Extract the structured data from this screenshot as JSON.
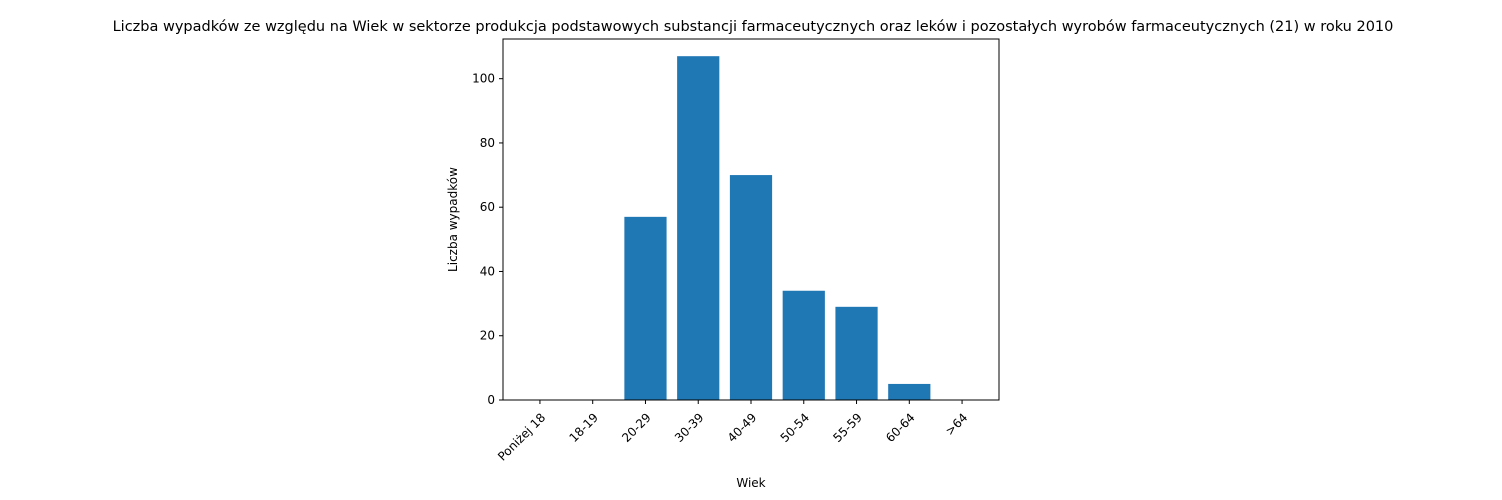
{
  "chart_data": {
    "type": "bar",
    "title": "Liczba wypadków ze względu na Wiek w sektorze produkcja podstawowych substancji farmaceutycznych oraz leków i pozostałych wyrobów farmaceutycznych (21)  w roku 2010",
    "xlabel": "Wiek",
    "ylabel": "Liczba wypadków",
    "categories": [
      "Poniżej 18",
      "18-19",
      "20-29",
      "30-39",
      "40-49",
      "50-54",
      "55-59",
      "60-64",
      ">64"
    ],
    "values": [
      0,
      0,
      57,
      107,
      70,
      34,
      29,
      5,
      0
    ],
    "ylim": [
      0,
      112.35
    ],
    "yticks": [
      0,
      20,
      40,
      60,
      80,
      100
    ],
    "grid": false,
    "legend": "none",
    "bar_color": "#1f77b4"
  }
}
